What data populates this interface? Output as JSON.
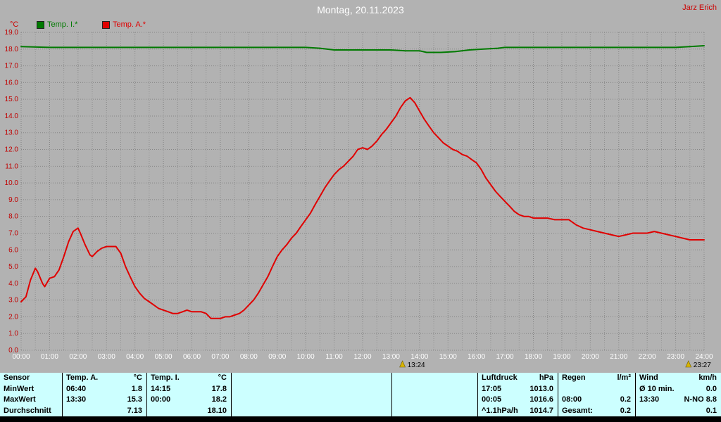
{
  "header": {
    "title": "Montag, 20.11.2023",
    "owner": "Jarz Erich"
  },
  "legend": {
    "unit": "°C",
    "series": [
      {
        "label": "Temp. I.*",
        "color": "#007a00"
      },
      {
        "label": "Temp. A.*",
        "color": "#e00000"
      }
    ]
  },
  "chart_data": {
    "type": "line",
    "title": "Montag, 20.11.2023",
    "ylabel": "°C",
    "xlabel": "",
    "ylim": [
      0,
      19
    ],
    "xlim": [
      0,
      24
    ],
    "grid": true,
    "y_tick_color": "#c00000",
    "x_tick_color": "#ffffff",
    "y_ticks": [
      "19.0",
      "18.0",
      "17.0",
      "16.0",
      "15.0",
      "14.0",
      "13.0",
      "12.0",
      "11.0",
      "10.0",
      "9.0",
      "8.0",
      "7.0",
      "6.0",
      "5.0",
      "4.0",
      "3.0",
      "2.0",
      "1.0",
      "0.0"
    ],
    "x_ticks": [
      "00:00",
      "01:00",
      "02:00",
      "03:00",
      "04:00",
      "05:00",
      "06:00",
      "07:00",
      "08:00",
      "09:00",
      "10:00",
      "11:00",
      "12:00",
      "13:00",
      "14:00",
      "15:00",
      "16:00",
      "17:00",
      "18:00",
      "19:00",
      "20:00",
      "21:00",
      "22:00",
      "23:00",
      "24:00"
    ],
    "series": [
      {
        "name": "Temp. I.*",
        "color": "#007a00",
        "points": [
          [
            0,
            18.15
          ],
          [
            1,
            18.1
          ],
          [
            2,
            18.1
          ],
          [
            3,
            18.1
          ],
          [
            4,
            18.1
          ],
          [
            5,
            18.1
          ],
          [
            6,
            18.1
          ],
          [
            7,
            18.1
          ],
          [
            8,
            18.1
          ],
          [
            9,
            18.1
          ],
          [
            10,
            18.1
          ],
          [
            10.5,
            18.05
          ],
          [
            11,
            17.95
          ],
          [
            11.5,
            17.95
          ],
          [
            12,
            17.95
          ],
          [
            12.5,
            17.95
          ],
          [
            13,
            17.95
          ],
          [
            13.5,
            17.9
          ],
          [
            14,
            17.9
          ],
          [
            14.25,
            17.8
          ],
          [
            14.75,
            17.8
          ],
          [
            15.25,
            17.85
          ],
          [
            15.75,
            17.95
          ],
          [
            16.25,
            18.0
          ],
          [
            16.75,
            18.05
          ],
          [
            17,
            18.1
          ],
          [
            18,
            18.1
          ],
          [
            19,
            18.1
          ],
          [
            20,
            18.1
          ],
          [
            21,
            18.1
          ],
          [
            22,
            18.1
          ],
          [
            23,
            18.1
          ],
          [
            23.5,
            18.15
          ],
          [
            24,
            18.2
          ]
        ]
      },
      {
        "name": "Temp. A.*",
        "color": "#e00000",
        "points": [
          [
            0,
            2.9
          ],
          [
            0.17,
            3.2
          ],
          [
            0.33,
            4.2
          ],
          [
            0.5,
            4.9
          ],
          [
            0.58,
            4.7
          ],
          [
            0.75,
            4.0
          ],
          [
            0.83,
            3.8
          ],
          [
            1.0,
            4.3
          ],
          [
            1.17,
            4.4
          ],
          [
            1.33,
            4.8
          ],
          [
            1.5,
            5.6
          ],
          [
            1.67,
            6.5
          ],
          [
            1.83,
            7.1
          ],
          [
            2.0,
            7.3
          ],
          [
            2.08,
            7.0
          ],
          [
            2.25,
            6.3
          ],
          [
            2.42,
            5.7
          ],
          [
            2.5,
            5.6
          ],
          [
            2.67,
            5.9
          ],
          [
            2.83,
            6.1
          ],
          [
            3.0,
            6.2
          ],
          [
            3.17,
            6.2
          ],
          [
            3.33,
            6.2
          ],
          [
            3.5,
            5.8
          ],
          [
            3.67,
            5.0
          ],
          [
            3.83,
            4.4
          ],
          [
            4.0,
            3.8
          ],
          [
            4.17,
            3.4
          ],
          [
            4.33,
            3.1
          ],
          [
            4.5,
            2.9
          ],
          [
            4.67,
            2.7
          ],
          [
            4.83,
            2.5
          ],
          [
            5.0,
            2.4
          ],
          [
            5.17,
            2.3
          ],
          [
            5.33,
            2.2
          ],
          [
            5.5,
            2.2
          ],
          [
            5.67,
            2.3
          ],
          [
            5.83,
            2.4
          ],
          [
            6.0,
            2.3
          ],
          [
            6.17,
            2.3
          ],
          [
            6.33,
            2.3
          ],
          [
            6.5,
            2.2
          ],
          [
            6.67,
            1.9
          ],
          [
            6.83,
            1.9
          ],
          [
            7.0,
            1.9
          ],
          [
            7.17,
            2.0
          ],
          [
            7.33,
            2.0
          ],
          [
            7.5,
            2.1
          ],
          [
            7.67,
            2.2
          ],
          [
            7.83,
            2.4
          ],
          [
            8.0,
            2.7
          ],
          [
            8.17,
            3.0
          ],
          [
            8.33,
            3.4
          ],
          [
            8.5,
            3.9
          ],
          [
            8.67,
            4.4
          ],
          [
            8.83,
            5.0
          ],
          [
            9.0,
            5.6
          ],
          [
            9.17,
            6.0
          ],
          [
            9.33,
            6.3
          ],
          [
            9.5,
            6.7
          ],
          [
            9.67,
            7.0
          ],
          [
            9.83,
            7.4
          ],
          [
            10.0,
            7.8
          ],
          [
            10.17,
            8.2
          ],
          [
            10.33,
            8.7
          ],
          [
            10.5,
            9.2
          ],
          [
            10.67,
            9.7
          ],
          [
            10.83,
            10.1
          ],
          [
            11.0,
            10.5
          ],
          [
            11.17,
            10.8
          ],
          [
            11.33,
            11.0
          ],
          [
            11.5,
            11.3
          ],
          [
            11.67,
            11.6
          ],
          [
            11.83,
            12.0
          ],
          [
            12.0,
            12.1
          ],
          [
            12.17,
            12.0
          ],
          [
            12.33,
            12.2
          ],
          [
            12.5,
            12.5
          ],
          [
            12.67,
            12.9
          ],
          [
            12.83,
            13.2
          ],
          [
            13.0,
            13.6
          ],
          [
            13.17,
            14.0
          ],
          [
            13.33,
            14.5
          ],
          [
            13.5,
            14.9
          ],
          [
            13.67,
            15.1
          ],
          [
            13.83,
            14.8
          ],
          [
            14.0,
            14.3
          ],
          [
            14.17,
            13.8
          ],
          [
            14.33,
            13.4
          ],
          [
            14.5,
            13.0
          ],
          [
            14.67,
            12.7
          ],
          [
            14.83,
            12.4
          ],
          [
            15.0,
            12.2
          ],
          [
            15.17,
            12.0
          ],
          [
            15.33,
            11.9
          ],
          [
            15.5,
            11.7
          ],
          [
            15.67,
            11.6
          ],
          [
            15.83,
            11.4
          ],
          [
            16.0,
            11.2
          ],
          [
            16.17,
            10.8
          ],
          [
            16.33,
            10.3
          ],
          [
            16.5,
            9.9
          ],
          [
            16.67,
            9.5
          ],
          [
            16.83,
            9.2
          ],
          [
            17.0,
            8.9
          ],
          [
            17.17,
            8.6
          ],
          [
            17.33,
            8.3
          ],
          [
            17.5,
            8.1
          ],
          [
            17.67,
            8.0
          ],
          [
            17.83,
            8.0
          ],
          [
            18.0,
            7.9
          ],
          [
            18.25,
            7.9
          ],
          [
            18.5,
            7.9
          ],
          [
            18.75,
            7.8
          ],
          [
            19.0,
            7.8
          ],
          [
            19.25,
            7.8
          ],
          [
            19.5,
            7.5
          ],
          [
            19.75,
            7.3
          ],
          [
            20.0,
            7.2
          ],
          [
            20.25,
            7.1
          ],
          [
            20.5,
            7.0
          ],
          [
            20.75,
            6.9
          ],
          [
            21.0,
            6.8
          ],
          [
            21.25,
            6.9
          ],
          [
            21.5,
            7.0
          ],
          [
            21.75,
            7.0
          ],
          [
            22.0,
            7.0
          ],
          [
            22.25,
            7.1
          ],
          [
            22.5,
            7.0
          ],
          [
            22.75,
            6.9
          ],
          [
            23.0,
            6.8
          ],
          [
            23.25,
            6.7
          ],
          [
            23.5,
            6.6
          ],
          [
            23.75,
            6.6
          ],
          [
            24.0,
            6.6
          ]
        ]
      }
    ],
    "sun_markers": [
      {
        "label": "13:24",
        "hour": 13.4
      },
      {
        "label": "23:27",
        "hour": 23.45
      }
    ]
  },
  "table": {
    "row_labels": [
      "Sensor",
      "MinWert",
      "MaxWert",
      "Durchschnitt"
    ],
    "groups": [
      {
        "name": "Temp. A.",
        "unit": "°C",
        "rows": [
          [
            "06:40",
            "1.8"
          ],
          [
            "13:30",
            "15.3"
          ],
          [
            "",
            "7.13"
          ]
        ]
      },
      {
        "name": "Temp. I.",
        "unit": "°C",
        "rows": [
          [
            "14:15",
            "17.8"
          ],
          [
            "00:00",
            "18.2"
          ],
          [
            "",
            "18.10"
          ]
        ]
      },
      {
        "name": "",
        "unit": "",
        "rows": [
          [
            "",
            ""
          ],
          [
            "",
            ""
          ],
          [
            "",
            ""
          ]
        ]
      },
      {
        "name": "",
        "unit": "",
        "rows": [
          [
            "",
            ""
          ],
          [
            "",
            ""
          ],
          [
            "",
            ""
          ]
        ]
      },
      {
        "name": "Luftdruck",
        "unit": "hPa",
        "rows": [
          [
            "17:05",
            "1013.0"
          ],
          [
            "00:05",
            "1016.6"
          ],
          [
            "^1.1hPa/h",
            "1014.7"
          ]
        ]
      },
      {
        "name": "Regen",
        "unit": "l/m²",
        "rows": [
          [
            "",
            ""
          ],
          [
            "08:00",
            "0.2"
          ],
          [
            "Gesamt:",
            "0.2"
          ]
        ]
      },
      {
        "name": "Wind",
        "unit": "km/h",
        "rows": [
          [
            "Ø 10 min.",
            "0.0"
          ],
          [
            "13:30",
            "N-NO 8.8"
          ],
          [
            "",
            "0.1"
          ]
        ]
      }
    ]
  }
}
